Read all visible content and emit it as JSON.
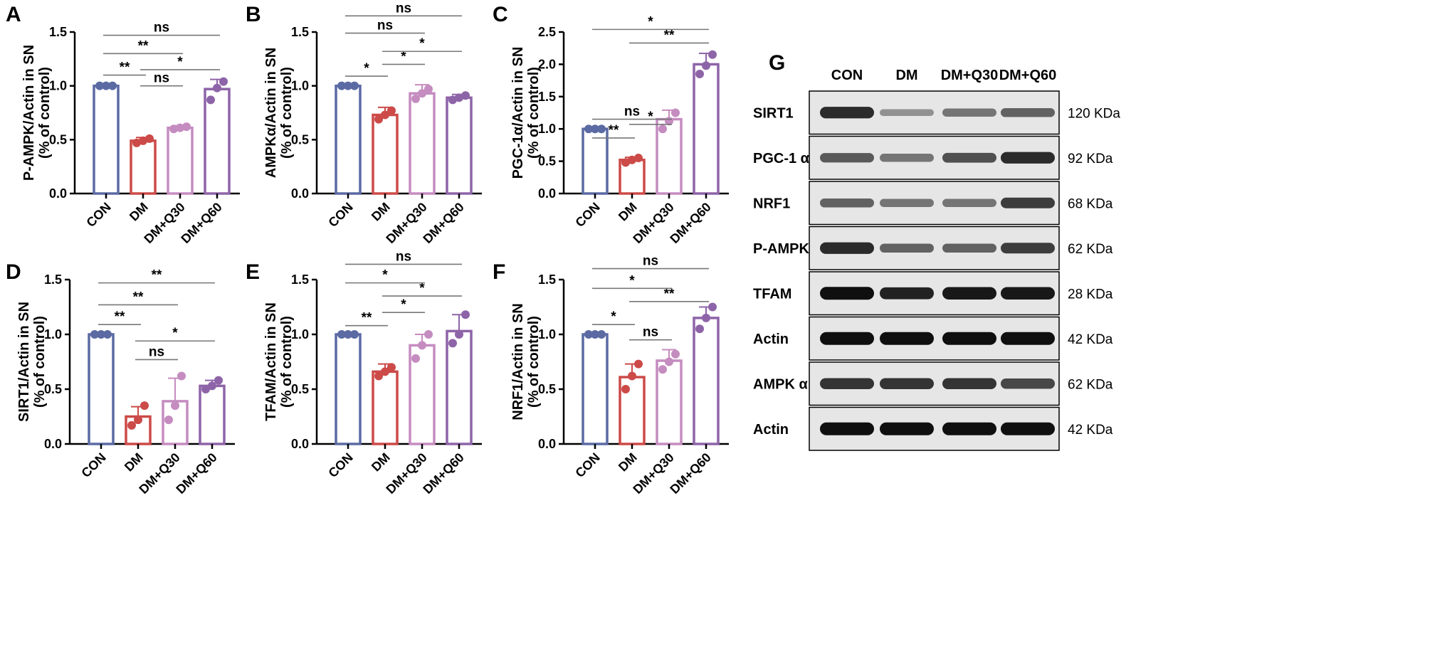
{
  "colors": {
    "CON": "#5b6aa3",
    "DM": "#cc4a48",
    "DM+Q30": "#c58cc0",
    "DM+Q60": "#8e64a8",
    "axis": "#000000",
    "bracket": "#777777"
  },
  "chart_data": [
    {
      "panel": "A",
      "type": "bar",
      "ylabel": "P-AMPK/Actin in SN",
      "ylabel2": "(% of control)",
      "categories": [
        "CON",
        "DM",
        "DM+Q30",
        "DM+Q60"
      ],
      "yticks": [
        "0.0",
        "0.5",
        "1.0",
        "1.5"
      ],
      "ylim": [
        0,
        1.5
      ],
      "values": [
        1.0,
        0.49,
        0.61,
        0.97
      ],
      "errors": [
        0.0,
        0.03,
        0.02,
        0.09
      ],
      "points": [
        [
          1.0,
          1.0,
          1.0
        ],
        [
          0.47,
          0.49,
          0.51
        ],
        [
          0.6,
          0.61,
          0.62
        ],
        [
          0.87,
          0.98,
          1.04
        ]
      ],
      "brackets": [
        {
          "from": 0,
          "to": 1,
          "label": "**",
          "y": 1.1
        },
        {
          "from": 1,
          "to": 2,
          "label": "ns",
          "y": 1.0
        },
        {
          "from": 1,
          "to": 3,
          "label": "*",
          "y": 1.15
        },
        {
          "from": 0,
          "to": 2,
          "label": "**",
          "y": 1.3
        },
        {
          "from": 0,
          "to": 3,
          "label": "ns",
          "y": 1.47
        }
      ]
    },
    {
      "panel": "B",
      "type": "bar",
      "ylabel": "AMPKα/Actin in SN",
      "ylabel2": "(% of control)",
      "categories": [
        "CON",
        "DM",
        "DM+Q30",
        "DM+Q60"
      ],
      "yticks": [
        "0.0",
        "0.5",
        "1.0",
        "1.5"
      ],
      "ylim": [
        0,
        1.5
      ],
      "values": [
        1.0,
        0.73,
        0.93,
        0.89
      ],
      "errors": [
        0.0,
        0.07,
        0.08,
        0.03
      ],
      "points": [
        [
          1.0,
          1.0,
          1.0
        ],
        [
          0.69,
          0.73,
          0.77
        ],
        [
          0.88,
          0.93,
          0.97
        ],
        [
          0.87,
          0.89,
          0.91
        ]
      ],
      "brackets": [
        {
          "from": 0,
          "to": 1,
          "label": "*",
          "y": 1.09
        },
        {
          "from": 1,
          "to": 2,
          "label": "*",
          "y": 1.2
        },
        {
          "from": 1,
          "to": 3,
          "label": "*",
          "y": 1.32
        },
        {
          "from": 0,
          "to": 2,
          "label": "ns",
          "y": 1.49
        },
        {
          "from": 0,
          "to": 3,
          "label": "ns",
          "y": 1.65
        }
      ]
    },
    {
      "panel": "C",
      "type": "bar",
      "ylabel": "PGC-1α/Actin in SN",
      "ylabel2": "(% of control)",
      "categories": [
        "CON",
        "DM",
        "DM+Q30",
        "DM+Q60"
      ],
      "yticks": [
        "0.0",
        "0.5",
        "1.0",
        "1.5",
        "2.0",
        "2.5"
      ],
      "ylim": [
        0,
        2.5
      ],
      "values": [
        1.0,
        0.52,
        1.15,
        2.0
      ],
      "errors": [
        0.0,
        0.04,
        0.14,
        0.17
      ],
      "points": [
        [
          1.0,
          1.0,
          1.0
        ],
        [
          0.48,
          0.52,
          0.55
        ],
        [
          1.0,
          1.12,
          1.25
        ],
        [
          1.85,
          1.98,
          2.15
        ]
      ],
      "brackets": [
        {
          "from": 0,
          "to": 1,
          "label": "**",
          "y": 0.86
        },
        {
          "from": 1,
          "to": 2,
          "label": "*",
          "y": 1.07
        },
        {
          "from": 0,
          "to": 2,
          "label": "ns",
          "y": 1.15
        },
        {
          "from": 1,
          "to": 3,
          "label": "**",
          "y": 2.33
        },
        {
          "from": 0,
          "to": 3,
          "label": "*",
          "y": 2.54
        }
      ]
    },
    {
      "panel": "D",
      "type": "bar",
      "ylabel": "SIRT1/Actin in SN",
      "ylabel2": "(% of control)",
      "categories": [
        "CON",
        "DM",
        "DM+Q30",
        "DM+Q60"
      ],
      "yticks": [
        "0.0",
        "0.5",
        "1.0",
        "1.5"
      ],
      "ylim": [
        0,
        1.5
      ],
      "values": [
        1.0,
        0.25,
        0.39,
        0.53
      ],
      "errors": [
        0.0,
        0.09,
        0.21,
        0.05
      ],
      "points": [
        [
          1.0,
          1.0,
          1.0
        ],
        [
          0.17,
          0.22,
          0.35
        ],
        [
          0.22,
          0.35,
          0.62
        ],
        [
          0.5,
          0.53,
          0.58
        ]
      ],
      "brackets": [
        {
          "from": 0,
          "to": 1,
          "label": "**",
          "y": 1.09
        },
        {
          "from": 1,
          "to": 2,
          "label": "ns",
          "y": 0.77
        },
        {
          "from": 1,
          "to": 3,
          "label": "*",
          "y": 0.94
        },
        {
          "from": 0,
          "to": 2,
          "label": "**",
          "y": 1.27
        },
        {
          "from": 0,
          "to": 3,
          "label": "**",
          "y": 1.47
        }
      ]
    },
    {
      "panel": "E",
      "type": "bar",
      "ylabel": "TFAM/Actin in SN",
      "ylabel2": "(% of control)",
      "categories": [
        "CON",
        "DM",
        "DM+Q30",
        "DM+Q60"
      ],
      "yticks": [
        "0.0",
        "0.5",
        "1.0",
        "1.5"
      ],
      "ylim": [
        0,
        1.5
      ],
      "values": [
        1.0,
        0.66,
        0.9,
        1.03
      ],
      "errors": [
        0.0,
        0.07,
        0.1,
        0.15
      ],
      "points": [
        [
          1.0,
          1.0,
          1.0
        ],
        [
          0.62,
          0.66,
          0.7
        ],
        [
          0.78,
          0.9,
          1.0
        ],
        [
          0.92,
          1.0,
          1.18
        ]
      ],
      "brackets": [
        {
          "from": 0,
          "to": 1,
          "label": "**",
          "y": 1.08
        },
        {
          "from": 1,
          "to": 2,
          "label": "*",
          "y": 1.2
        },
        {
          "from": 1,
          "to": 3,
          "label": "*",
          "y": 1.35
        },
        {
          "from": 0,
          "to": 2,
          "label": "*",
          "y": 1.47
        },
        {
          "from": 0,
          "to": 3,
          "label": "ns",
          "y": 1.64
        }
      ]
    },
    {
      "panel": "F",
      "type": "bar",
      "ylabel": "NRF1/Actin in SN",
      "ylabel2": "(% of control)",
      "categories": [
        "CON",
        "DM",
        "DM+Q30",
        "DM+Q60"
      ],
      "yticks": [
        "0.0",
        "0.5",
        "1.0",
        "1.5"
      ],
      "ylim": [
        0,
        1.5
      ],
      "values": [
        1.0,
        0.61,
        0.76,
        1.15
      ],
      "errors": [
        0.0,
        0.12,
        0.1,
        0.1
      ],
      "points": [
        [
          1.0,
          1.0,
          1.0
        ],
        [
          0.5,
          0.62,
          0.73
        ],
        [
          0.68,
          0.75,
          0.82
        ],
        [
          1.05,
          1.15,
          1.25
        ]
      ],
      "brackets": [
        {
          "from": 0,
          "to": 1,
          "label": "*",
          "y": 1.09
        },
        {
          "from": 1,
          "to": 2,
          "label": "ns",
          "y": 0.95
        },
        {
          "from": 1,
          "to": 3,
          "label": "**",
          "y": 1.3
        },
        {
          "from": 0,
          "to": 2,
          "label": "*",
          "y": 1.42
        },
        {
          "from": 0,
          "to": 3,
          "label": "ns",
          "y": 1.6
        }
      ]
    }
  ],
  "blot": {
    "panel": "G",
    "columns": [
      "CON",
      "DM",
      "DM+Q30",
      "DM+Q60"
    ],
    "rows": [
      {
        "label": "SIRT1",
        "kda": "120 KDa",
        "bands": [
          0.85,
          0.3,
          0.45,
          0.55
        ]
      },
      {
        "label": "PGC-1 α",
        "kda": "92 KDa",
        "bands": [
          0.6,
          0.45,
          0.65,
          0.85
        ]
      },
      {
        "label": "NRF1",
        "kda": "68 KDa",
        "bands": [
          0.55,
          0.45,
          0.45,
          0.75
        ]
      },
      {
        "label": "P-AMPK",
        "kda": "62 KDa",
        "bands": [
          0.85,
          0.55,
          0.55,
          0.75
        ]
      },
      {
        "label": "TFAM",
        "kda": "28 KDa",
        "bands": [
          1.0,
          0.9,
          0.95,
          0.95
        ]
      },
      {
        "label": "Actin",
        "kda": "42 KDa",
        "bands": [
          1.0,
          1.0,
          1.0,
          1.0
        ]
      },
      {
        "label": "AMPK α",
        "kda": "62 KDa",
        "bands": [
          0.8,
          0.8,
          0.8,
          0.7
        ]
      },
      {
        "label": "Actin",
        "kda": "42 KDa",
        "bands": [
          1.0,
          1.0,
          1.0,
          1.0
        ]
      }
    ]
  }
}
